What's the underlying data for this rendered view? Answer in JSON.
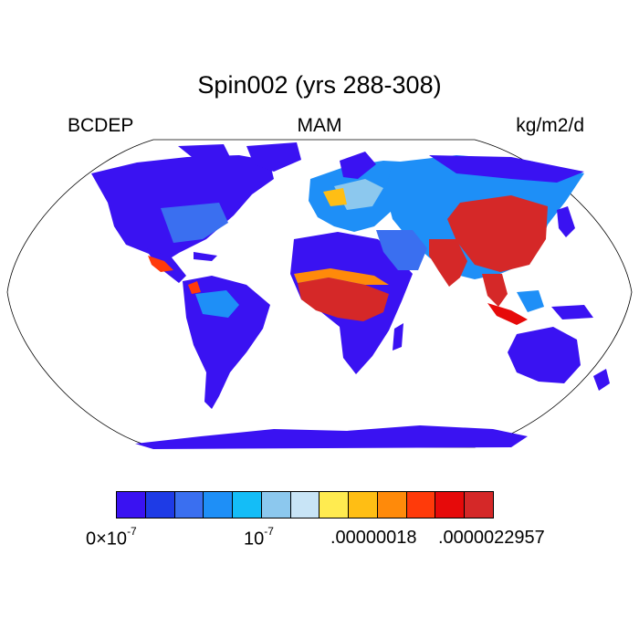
{
  "title": "Spin002 (yrs 288-308)",
  "variable": "BCDEP",
  "season": "MAM",
  "units": "kg/m2/d",
  "colorbar": {
    "colors": [
      "#3a12f2",
      "#1e3be6",
      "#3a6ff0",
      "#1e8ff7",
      "#14bdf7",
      "#8cc8ee",
      "#c8e4f6",
      "#ffeb50",
      "#ffbe14",
      "#ff8a0a",
      "#ff3a0a",
      "#e60a0a",
      "#d52828"
    ],
    "labels": {
      "l0_mant": "0×10",
      "l0_exp": "-7",
      "l1_mant": "10",
      "l1_exp": "-7",
      "l2": ".00000018",
      "l3": ".0000022957"
    }
  },
  "map": {
    "ocean_color": "#ffffff",
    "land_low": "#3a12f2",
    "land_mid": "#1e8ff7",
    "land_high": "#d52828"
  }
}
